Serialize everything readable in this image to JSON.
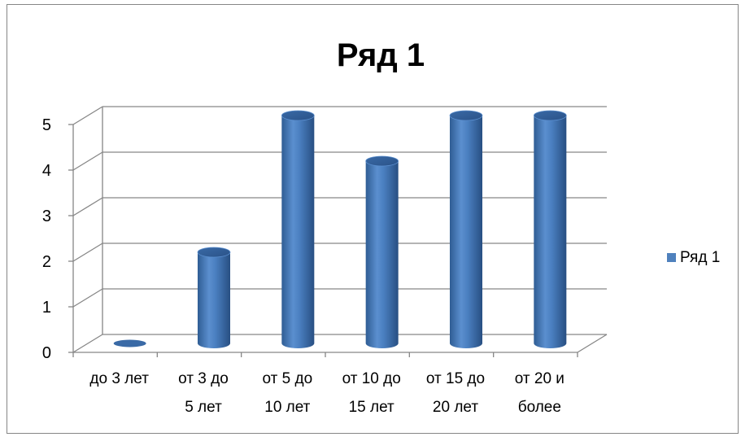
{
  "chart_data": {
    "type": "bar",
    "title": "Ряд 1",
    "categories": [
      [
        "до 3 лет"
      ],
      [
        "от 3 до",
        "5 лет"
      ],
      [
        "от 5 до",
        "10 лет"
      ],
      [
        "от 10 до",
        "15 лет"
      ],
      [
        "от 15 до",
        "20 лет"
      ],
      [
        "от 20 и",
        "более"
      ]
    ],
    "series": [
      {
        "name": "Ряд 1",
        "values": [
          0,
          2,
          5,
          4,
          5,
          5
        ],
        "color": "#4F81BD"
      }
    ],
    "ylim": [
      0,
      5
    ],
    "yticks": [
      "0",
      "1",
      "2",
      "3",
      "4",
      "5"
    ],
    "grid": true,
    "legend_position": "right",
    "style": "3d-cylinder"
  }
}
